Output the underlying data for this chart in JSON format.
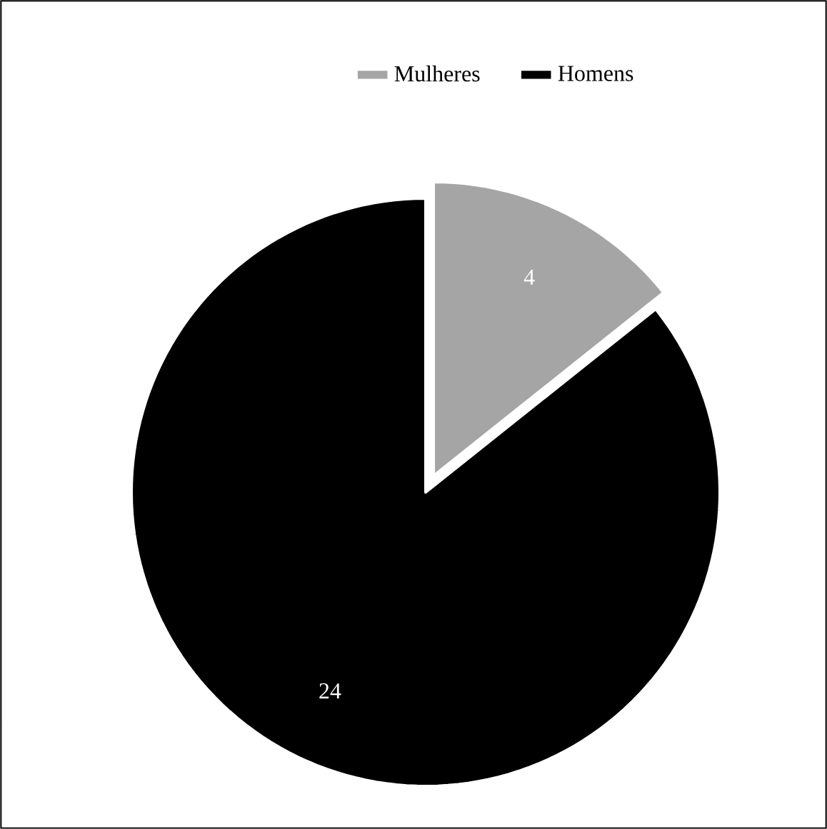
{
  "chart_data": {
    "type": "pie",
    "categories": [
      "Mulheres",
      "Homens"
    ],
    "values": [
      4,
      24
    ],
    "colors": [
      "#a5a5a5",
      "#000000"
    ],
    "data_labels": true,
    "legend": "top"
  }
}
